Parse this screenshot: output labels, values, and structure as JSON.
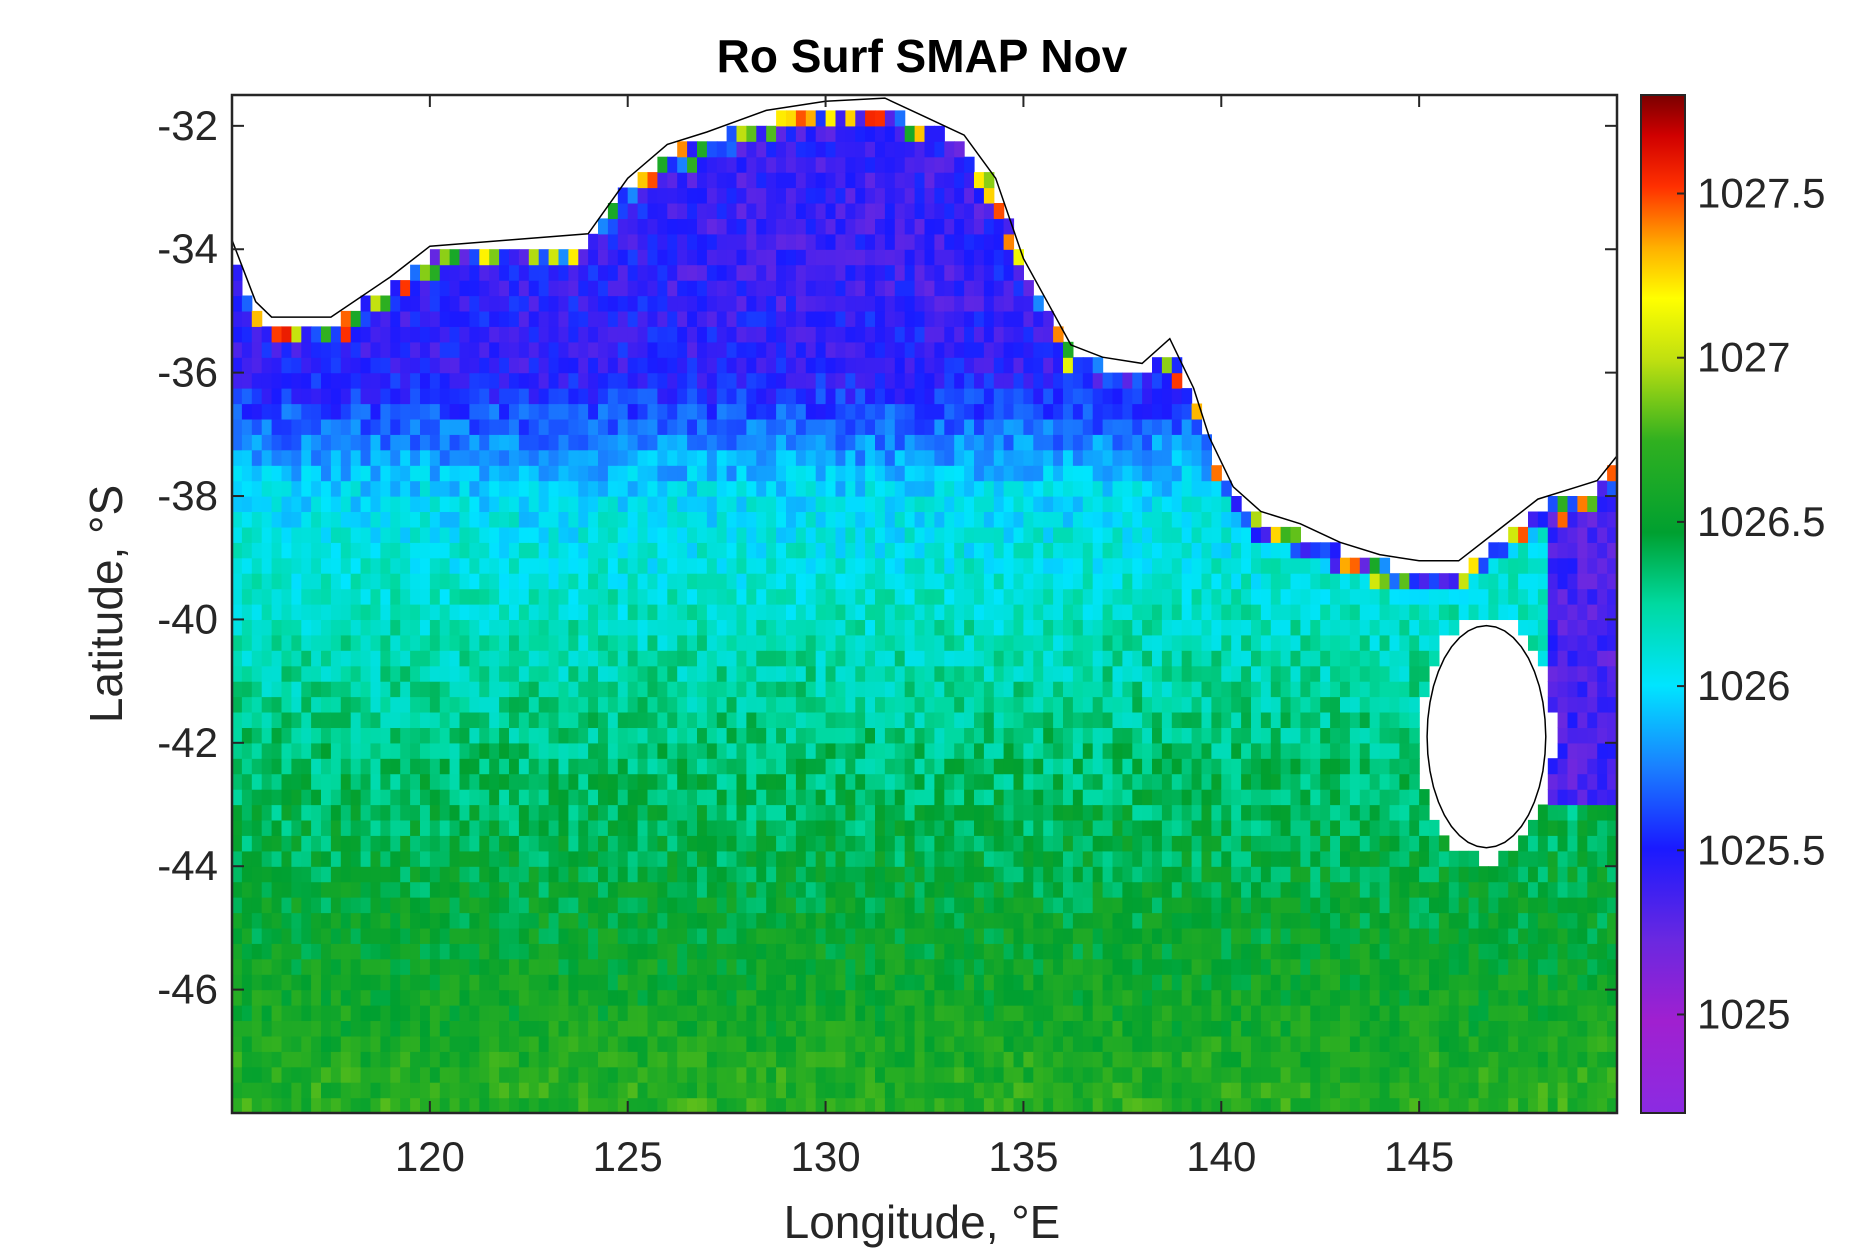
{
  "chart_data": {
    "type": "heatmap",
    "title": "Ro Surf SMAP Nov",
    "xlabel": "Longitude, °E",
    "ylabel": "Latitude, °S",
    "xlim": [
      115,
      150
    ],
    "ylim": [
      -48,
      -31.5
    ],
    "xticks": [
      120,
      125,
      130,
      135,
      140,
      145
    ],
    "yticks": [
      -32,
      -34,
      -36,
      -38,
      -40,
      -42,
      -44,
      -46
    ],
    "grid": false,
    "colorbar": {
      "label": "",
      "range": [
        1024.7,
        1027.8
      ],
      "ticks": [
        1025,
        1025.5,
        1026,
        1026.5,
        1027,
        1027.5
      ],
      "tick_labels": [
        "1025",
        "1025.5",
        "1026",
        "1026.5",
        "1027",
        "1027.5"
      ]
    },
    "values_description_points": [
      {
        "lon": 120,
        "lat": -36,
        "density": 1025.5
      },
      {
        "lon": 130,
        "lat": -34,
        "density": 1025.4
      },
      {
        "lon": 130,
        "lat": -38,
        "density": 1026.0
      },
      {
        "lon": 130,
        "lat": -42,
        "density": 1026.3
      },
      {
        "lon": 130,
        "lat": -46,
        "density": 1026.6
      },
      {
        "lon": 140,
        "lat": -44,
        "density": 1026.4
      },
      {
        "lon": 147,
        "lat": -40,
        "density": 1026.4
      },
      {
        "lon": 149,
        "lat": -40,
        "density": 1025.3
      }
    ]
  }
}
